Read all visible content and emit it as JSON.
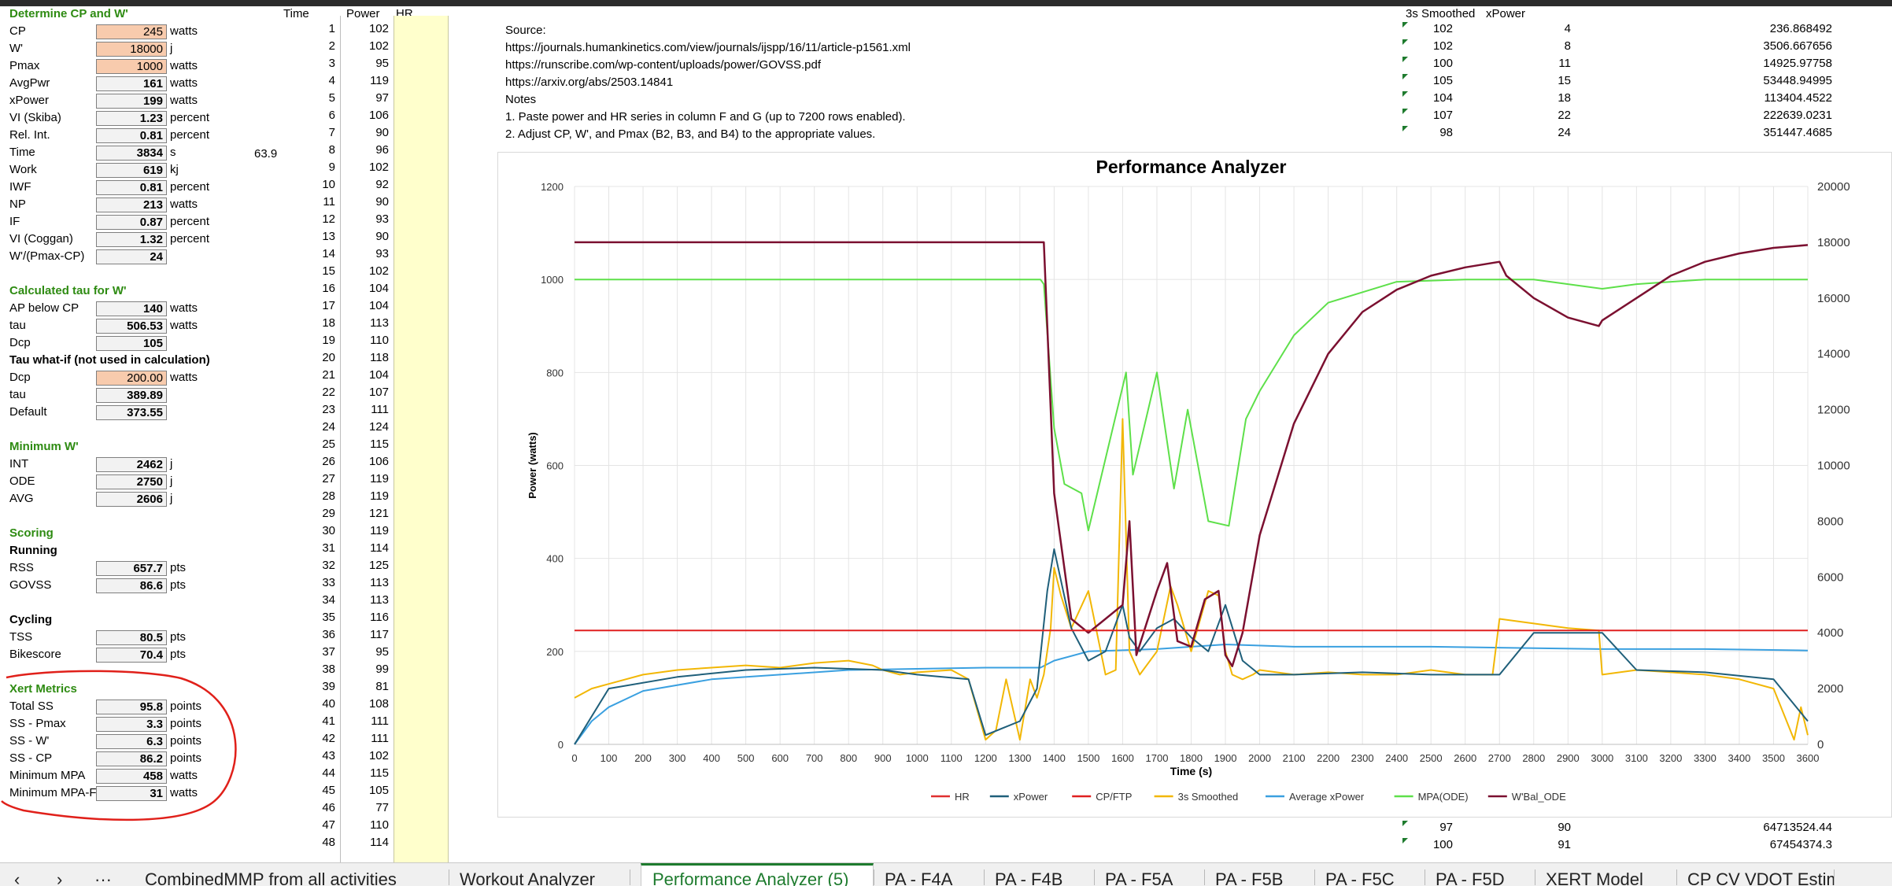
{
  "left_panel": {
    "heading1": "Determine CP and W'",
    "rows1": [
      {
        "label": "CP",
        "value": "245",
        "unit": "watts",
        "orange": true
      },
      {
        "label": "W'",
        "value": "18000",
        "unit": "j",
        "orange": true
      },
      {
        "label": "Pmax",
        "value": "1000",
        "unit": "watts",
        "orange": true
      },
      {
        "label": "AvgPwr",
        "value": "161",
        "unit": "watts"
      },
      {
        "label": "xPower",
        "value": "199",
        "unit": "watts"
      },
      {
        "label": "VI (Skiba)",
        "value": "1.23",
        "unit": "percent"
      },
      {
        "label": "Rel. Int.",
        "value": "0.81",
        "unit": "percent"
      },
      {
        "label": "Time",
        "value": "3834",
        "unit": "s",
        "extra": "63.9"
      },
      {
        "label": "Work",
        "value": "619",
        "unit": "kj"
      },
      {
        "label": "IWF",
        "value": "0.81",
        "unit": "percent"
      },
      {
        "label": "NP",
        "value": "213",
        "unit": "watts"
      },
      {
        "label": "IF",
        "value": "0.87",
        "unit": "percent"
      },
      {
        "label": "VI (Coggan)",
        "value": "1.32",
        "unit": "percent"
      },
      {
        "label": "W'/(Pmax-CP)",
        "value": "24",
        "unit": ""
      }
    ],
    "heading2": "Calculated tau for W'",
    "rows2": [
      {
        "label": "AP below CP",
        "value": "140",
        "unit": "watts"
      },
      {
        "label": "tau",
        "value": "506.53",
        "unit": "watts"
      },
      {
        "label": "Dcp",
        "value": "105",
        "unit": ""
      }
    ],
    "heading3": "Tau what-if (not used in calculation)",
    "rows3": [
      {
        "label": "Dcp",
        "value": "200.00",
        "unit": "watts",
        "orange": true
      },
      {
        "label": "tau",
        "value": "389.89",
        "unit": ""
      },
      {
        "label": "Default",
        "value": "373.55",
        "unit": ""
      }
    ],
    "heading4": "Minimum W'",
    "rows4": [
      {
        "label": "INT",
        "value": "2462",
        "unit": "j"
      },
      {
        "label": "ODE",
        "value": "2750",
        "unit": "j"
      },
      {
        "label": "AVG",
        "value": "2606",
        "unit": "j"
      }
    ],
    "heading5": "Scoring",
    "sub_running": "Running",
    "rows5": [
      {
        "label": "RSS",
        "value": "657.7",
        "unit": "pts"
      },
      {
        "label": "GOVSS",
        "value": "86.6",
        "unit": "pts"
      }
    ],
    "sub_cycling": "Cycling",
    "rows6": [
      {
        "label": "TSS",
        "value": "80.5",
        "unit": "pts"
      },
      {
        "label": "Bikescore",
        "value": "70.4",
        "unit": "pts"
      }
    ],
    "heading6": "Xert Metrics",
    "rows7": [
      {
        "label": "Total SS",
        "value": "95.8",
        "unit": "points"
      },
      {
        "label": "SS - Pmax",
        "value": "3.3",
        "unit": "points"
      },
      {
        "label": "SS - W'",
        "value": "6.3",
        "unit": "points"
      },
      {
        "label": "SS - CP",
        "value": "86.2",
        "unit": "points"
      },
      {
        "label": "Minimum MPA",
        "value": "458",
        "unit": "watts"
      },
      {
        "label": "Minimum MPA-F",
        "value": "31",
        "unit": "watts"
      }
    ]
  },
  "columns": {
    "time": "Time",
    "power": "Power",
    "hr": "HR"
  },
  "power_series": [
    "102",
    "102",
    "95",
    "119",
    "97",
    "106",
    "90",
    "96",
    "102",
    "92",
    "90",
    "93",
    "90",
    "93",
    "102",
    "104",
    "104",
    "113",
    "110",
    "118",
    "104",
    "107",
    "111",
    "124",
    "115",
    "106",
    "119",
    "119",
    "121",
    "119",
    "114",
    "125",
    "113",
    "113",
    "116",
    "117",
    "95",
    "99",
    "81",
    "108",
    "111",
    "111",
    "102",
    "115",
    "105",
    "77",
    "110",
    "114"
  ],
  "notes": {
    "source_label": "Source:",
    "links": [
      "https://journals.humankinetics.com/view/journals/ijspp/16/11/article-p1561.xml",
      "https://runscribe.com/wp-content/uploads/power/GOVSS.pdf",
      "https://arxiv.org/abs/2503.14841"
    ],
    "notes_label": "Notes",
    "items": [
      "1. Paste power and HR series in column F and G (up to 7200 rows enabled).",
      "2. Adjust CP, W', and Pmax  (B2, B3, and B4) to the appropriate values."
    ]
  },
  "right_table": {
    "headers": [
      "3s Smoothed",
      "xPower"
    ],
    "rows": [
      [
        "102",
        "4",
        "236.868492"
      ],
      [
        "102",
        "8",
        "3506.667656"
      ],
      [
        "100",
        "11",
        "14925.97758"
      ],
      [
        "105",
        "15",
        "53448.94995"
      ],
      [
        "104",
        "18",
        "113404.4522"
      ],
      [
        "107",
        "22",
        "222639.0231"
      ],
      [
        "98",
        "24",
        "351447.4685"
      ]
    ],
    "bottom_rows": [
      [
        "97",
        "90",
        "64713524.44"
      ],
      [
        "100",
        "91",
        "67454374.3"
      ]
    ]
  },
  "chart_data": {
    "type": "line",
    "title": "Performance Analyzer",
    "xlabel": "Time (s)",
    "ylabel": "Power (watts)",
    "xlim": [
      0,
      3600
    ],
    "ylim": [
      0,
      1200
    ],
    "y2lim": [
      0,
      20000
    ],
    "x_ticks": [
      "0",
      "100",
      "200",
      "300",
      "400",
      "500",
      "600",
      "700",
      "800",
      "900",
      "1000",
      "1100",
      "1200",
      "1300",
      "1400",
      "1500",
      "1600",
      "1700",
      "1800",
      "1900",
      "2000",
      "2100",
      "2200",
      "2300",
      "2400",
      "2500",
      "2600",
      "2700",
      "2800",
      "2900",
      "3000",
      "3100",
      "3200",
      "3300",
      "3400",
      "3500",
      "3600"
    ],
    "y_ticks": [
      "0",
      "200",
      "400",
      "600",
      "800",
      "1000",
      "1200"
    ],
    "y2_ticks": [
      "0",
      "2000",
      "4000",
      "6000",
      "8000",
      "10000",
      "12000",
      "14000",
      "16000",
      "18000",
      "20000"
    ],
    "grid": true,
    "legend_position": "bottom",
    "series": [
      {
        "name": "HR",
        "color": "#e03030",
        "axis": "left",
        "x": [],
        "values": []
      },
      {
        "name": "xPower",
        "color": "#1f5f7a",
        "axis": "left",
        "x": [
          0,
          100,
          300,
          500,
          700,
          900,
          1000,
          1150,
          1200,
          1300,
          1350,
          1380,
          1400,
          1450,
          1500,
          1550,
          1600,
          1620,
          1650,
          1700,
          1750,
          1800,
          1850,
          1900,
          1950,
          2000,
          2100,
          2300,
          2500,
          2700,
          2800,
          2900,
          3000,
          3100,
          3300,
          3500,
          3600
        ],
        "values": [
          0,
          120,
          145,
          160,
          165,
          160,
          150,
          140,
          20,
          50,
          120,
          330,
          420,
          250,
          180,
          200,
          300,
          230,
          200,
          250,
          270,
          230,
          200,
          300,
          180,
          150,
          150,
          155,
          150,
          150,
          240,
          240,
          240,
          160,
          155,
          140,
          50
        ]
      },
      {
        "name": "CP/FTP",
        "color": "#e02020",
        "axis": "left",
        "x": [
          0,
          3600
        ],
        "values": [
          245,
          245
        ]
      },
      {
        "name": "3s Smoothed",
        "color": "#f2b705",
        "axis": "left",
        "x": [
          0,
          50,
          100,
          200,
          300,
          400,
          500,
          600,
          700,
          800,
          870,
          900,
          950,
          1000,
          1100,
          1150,
          1200,
          1230,
          1260,
          1300,
          1330,
          1350,
          1370,
          1390,
          1400,
          1420,
          1450,
          1500,
          1550,
          1580,
          1600,
          1620,
          1650,
          1700,
          1740,
          1760,
          1800,
          1850,
          1880,
          1900,
          1920,
          1950,
          1980,
          2000,
          2100,
          2200,
          2300,
          2400,
          2500,
          2600,
          2680,
          2700,
          2800,
          2900,
          2990,
          3000,
          3100,
          3200,
          3300,
          3400,
          3500,
          3560,
          3580,
          3600
        ],
        "values": [
          100,
          120,
          130,
          150,
          160,
          165,
          170,
          165,
          175,
          180,
          170,
          160,
          150,
          155,
          160,
          140,
          10,
          30,
          140,
          10,
          140,
          100,
          150,
          250,
          380,
          320,
          250,
          330,
          150,
          160,
          700,
          200,
          150,
          200,
          340,
          300,
          200,
          330,
          320,
          200,
          150,
          140,
          150,
          160,
          150,
          155,
          150,
          150,
          160,
          150,
          150,
          270,
          260,
          250,
          245,
          150,
          160,
          155,
          150,
          140,
          120,
          10,
          80,
          20
        ]
      },
      {
        "name": "Average xPower",
        "color": "#3aa0e0",
        "axis": "left",
        "x": [
          0,
          50,
          100,
          200,
          400,
          800,
          1200,
          1360,
          1400,
          1500,
          1700,
          1900,
          2100,
          2500,
          3000,
          3300,
          3600
        ],
        "values": [
          0,
          50,
          80,
          115,
          140,
          160,
          165,
          165,
          180,
          200,
          205,
          215,
          210,
          210,
          205,
          205,
          202
        ]
      },
      {
        "name": "MPA(ODE)",
        "color": "#5ee04a",
        "axis": "left",
        "x": [
          0,
          1360,
          1370,
          1400,
          1430,
          1480,
          1500,
          1610,
          1630,
          1700,
          1750,
          1790,
          1850,
          1910,
          1960,
          2000,
          2100,
          2200,
          2400,
          2600,
          2800,
          2900,
          3000,
          3100,
          3300,
          3600
        ],
        "values": [
          1000,
          1000,
          990,
          680,
          560,
          540,
          460,
          800,
          580,
          800,
          550,
          720,
          480,
          470,
          700,
          760,
          880,
          950,
          995,
          1000,
          1000,
          990,
          980,
          990,
          1000,
          1000
        ]
      },
      {
        "name": "W'Bal_ODE",
        "color": "#7b1030",
        "axis": "right",
        "x": [
          0,
          1370,
          1380,
          1400,
          1450,
          1500,
          1600,
          1620,
          1640,
          1700,
          1730,
          1760,
          1800,
          1840,
          1880,
          1900,
          1920,
          1950,
          2000,
          2100,
          2200,
          2300,
          2400,
          2500,
          2600,
          2700,
          2720,
          2800,
          2900,
          2990,
          3000,
          3100,
          3200,
          3300,
          3400,
          3500,
          3600
        ],
        "values": [
          18000,
          18000,
          15000,
          9000,
          4500,
          4000,
          5000,
          8000,
          3200,
          5500,
          6500,
          3700,
          3500,
          5200,
          5500,
          3200,
          2800,
          4000,
          7500,
          11500,
          14000,
          15500,
          16300,
          16800,
          17100,
          17300,
          16800,
          16000,
          15300,
          15000,
          15200,
          16000,
          16800,
          17300,
          17600,
          17800,
          17900
        ]
      }
    ]
  },
  "tabs": {
    "items": [
      "CombinedMMP from all activities",
      "Workout Analyzer",
      "Performance Analyzer (5)",
      "PA - F4A",
      "PA - F4B",
      "PA - F5A",
      "PA - F5B",
      "PA - F5C",
      "PA - F5D",
      "XERT Model",
      "CP CV VDOT Estim"
    ],
    "active_index": 2,
    "nav": [
      "‹",
      "›",
      "···"
    ]
  },
  "annotation_color": "#e0201a"
}
